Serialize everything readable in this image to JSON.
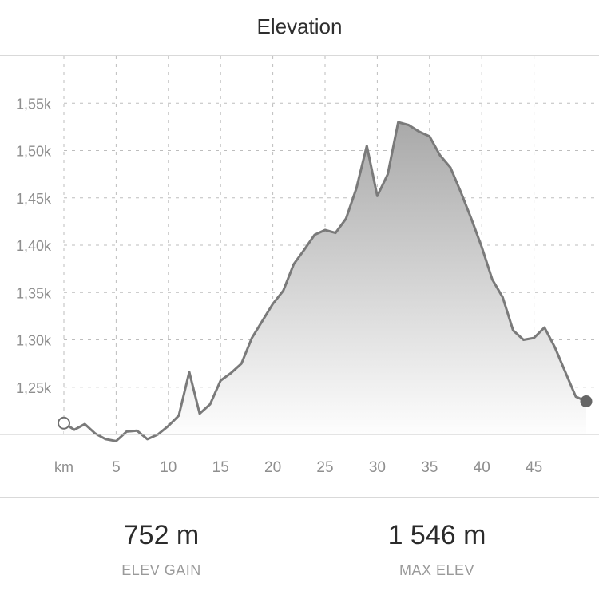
{
  "header": {
    "title": "Elevation"
  },
  "chart_data": {
    "type": "area",
    "title": "",
    "xlabel": "",
    "ylabel": "",
    "x_unit_label": "km",
    "x_ticks": [
      5,
      10,
      15,
      20,
      25,
      30,
      35,
      40,
      45
    ],
    "y_ticks": [
      1250,
      1300,
      1350,
      1400,
      1450,
      1500,
      1550
    ],
    "y_tick_labels": [
      "1,25k",
      "1,30k",
      "1,35k",
      "1,40k",
      "1,45k",
      "1,50k",
      "1,55k"
    ],
    "xlim": [
      0,
      50
    ],
    "ylim": [
      1200,
      1600
    ],
    "grid": true,
    "line_color": "#7a7a7a",
    "fill_color": "#b8b8b8",
    "series": [
      {
        "x": [
          0,
          1,
          2,
          3,
          4,
          5,
          6,
          7,
          8,
          9,
          10,
          11,
          12,
          13,
          14,
          15,
          16,
          17,
          18,
          19,
          20,
          21,
          22,
          23,
          24,
          25,
          26,
          27,
          28,
          29,
          30,
          31,
          32,
          33,
          34,
          35,
          36,
          37,
          38,
          39,
          40,
          41,
          42,
          43,
          44,
          45,
          46,
          47,
          48,
          49,
          50
        ],
        "y": [
          1212,
          1205,
          1211,
          1201,
          1195,
          1193,
          1203,
          1204,
          1195,
          1200,
          1209,
          1220,
          1266,
          1222,
          1232,
          1257,
          1265,
          1275,
          1302,
          1320,
          1338,
          1352,
          1380,
          1395,
          1411,
          1416,
          1413,
          1428,
          1460,
          1505,
          1452,
          1475,
          1530,
          1527,
          1520,
          1515,
          1495,
          1482,
          1456,
          1428,
          1398,
          1364,
          1345,
          1310,
          1300,
          1302,
          1313,
          1292,
          1266,
          1240,
          1235
        ]
      }
    ]
  },
  "stats": {
    "elev_gain": {
      "value": "752 m",
      "label": "ELEV GAIN"
    },
    "max_elev": {
      "value": "1 546 m",
      "label": "MAX ELEV"
    }
  }
}
